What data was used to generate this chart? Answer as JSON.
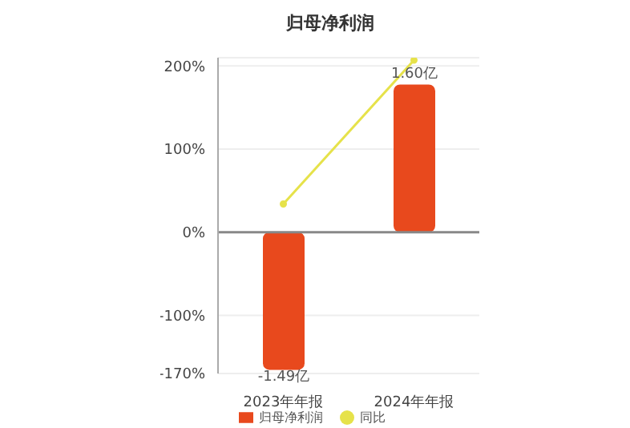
{
  "chart_data": {
    "type": "bar",
    "title": "归母净利润",
    "categories": [
      "2023年年报",
      "2024年年报"
    ],
    "series": [
      {
        "name": "归母净利润",
        "axis": "y2",
        "color": "#e8491d",
        "values": [
          -1.49,
          1.6
        ],
        "value_labels": [
          "-1.49亿",
          "1.60亿"
        ]
      },
      {
        "name": "同比",
        "type": "line",
        "color": "#e6e24a",
        "values": [
          34,
          207
        ],
        "marker": "circle"
      }
    ],
    "ylim": [
      -170,
      210
    ],
    "yticks": [
      {
        "value": -170,
        "label": "-170%"
      },
      {
        "value": -100,
        "label": "-100%"
      },
      {
        "value": 0,
        "label": "0%"
      },
      {
        "value": 100,
        "label": "100%"
      },
      {
        "value": 200,
        "label": "200%"
      }
    ],
    "y2lim": [
      -1.53,
      1.89
    ],
    "tick_labels": "xy",
    "grid": "y",
    "legend": "bottom"
  }
}
